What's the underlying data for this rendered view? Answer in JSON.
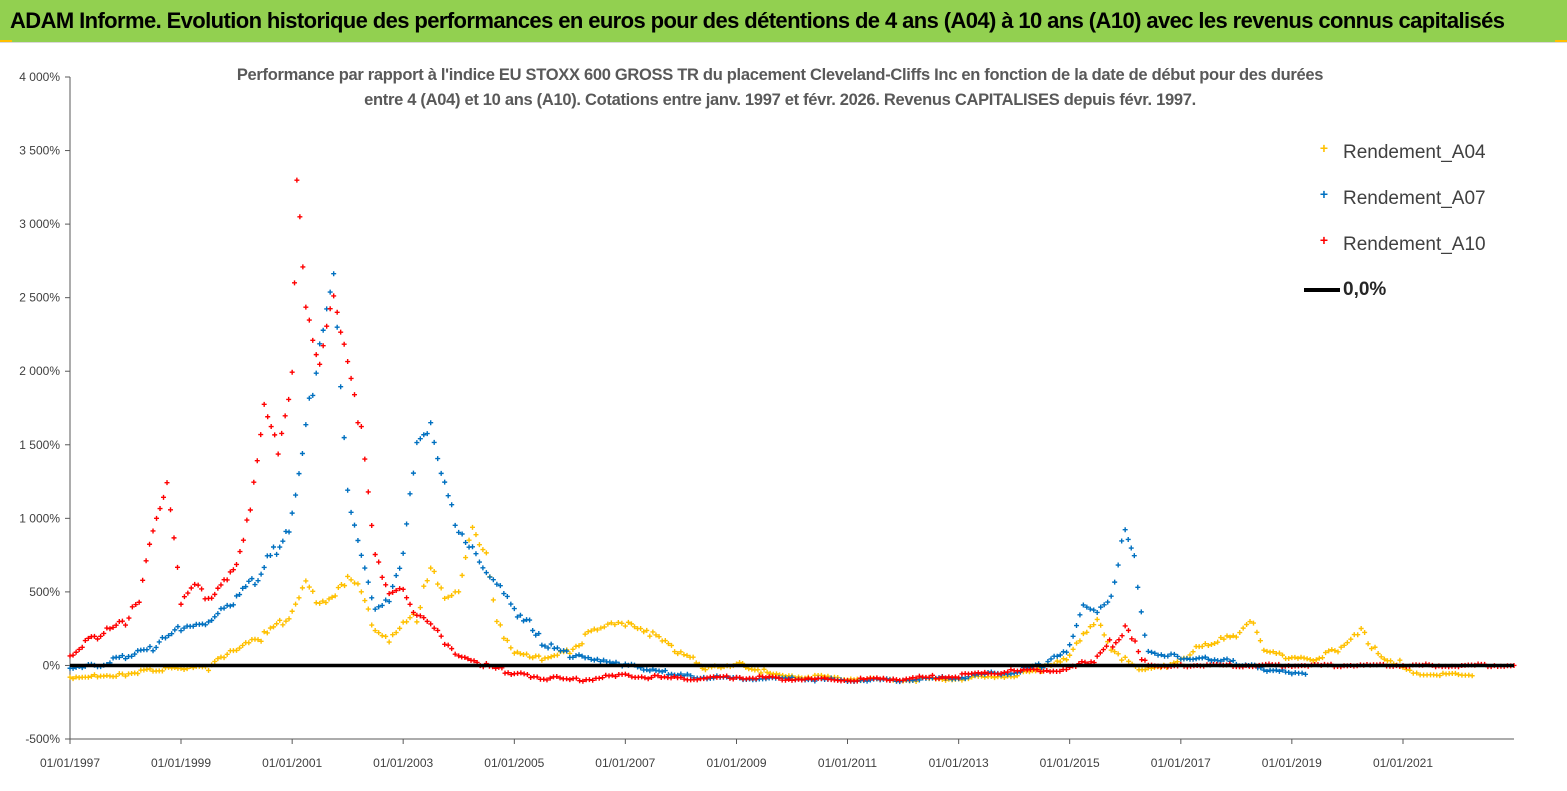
{
  "banner": {
    "title": "ADAM Informe. Evolution historique des performances en euros pour des détentions de 4 ans (A04) à 10 ans (A10) avec les revenus connus capitalisés",
    "background": "#92d050",
    "corner_color": "#ffc000"
  },
  "chart_data": {
    "type": "scatter",
    "title_line1": "Performance par rapport à l'indice EU STOXX 600 GROSS TR  du placement Cleveland-Cliffs Inc en fonction de la date de début pour des durées",
    "title_line2": "entre 4 (A04) et 10 ans (A10). Cotations entre janv. 1997 et févr. 2026. Revenus CAPITALISES depuis févr. 1997.",
    "xlabel": "",
    "ylabel": "",
    "x_range": [
      "1997-01-01",
      "2023-01-01"
    ],
    "x_ticks": [
      "01/01/1997",
      "01/01/1999",
      "01/01/2001",
      "01/01/2003",
      "01/01/2005",
      "01/01/2007",
      "01/01/2009",
      "01/01/2011",
      "01/01/2013",
      "01/01/2015",
      "01/01/2017",
      "01/01/2019",
      "01/01/2021"
    ],
    "y_range": [
      -500,
      4000
    ],
    "y_ticks": [
      "-500%",
      "0%",
      "500%",
      "1 000%",
      "1 500%",
      "2 000%",
      "2 500%",
      "3 000%",
      "3 500%",
      "4 000%"
    ],
    "y_tick_values": [
      -500,
      0,
      500,
      1000,
      1500,
      2000,
      2500,
      3000,
      3500,
      4000
    ],
    "marker": "+",
    "legend_position": "top-right",
    "grid": false,
    "series": [
      {
        "name": "Rendement_A04",
        "color": "#ffc000",
        "points": [
          [
            "1997-01-01",
            -80
          ],
          [
            "1997-07-01",
            -70
          ],
          [
            "1998-01-01",
            -60
          ],
          [
            "1998-07-01",
            -30
          ],
          [
            "1999-01-01",
            -20
          ],
          [
            "1999-07-01",
            -10
          ],
          [
            "2000-01-01",
            100
          ],
          [
            "2000-07-01",
            200
          ],
          [
            "2001-01-01",
            350
          ],
          [
            "2001-04-01",
            550
          ],
          [
            "2001-07-01",
            400
          ],
          [
            "2002-01-01",
            600
          ],
          [
            "2002-04-01",
            550
          ],
          [
            "2002-07-01",
            250
          ],
          [
            "2002-10-01",
            180
          ],
          [
            "2003-01-01",
            300
          ],
          [
            "2003-04-01",
            350
          ],
          [
            "2003-07-01",
            650
          ],
          [
            "2003-10-01",
            450
          ],
          [
            "2004-01-01",
            500
          ],
          [
            "2004-04-01",
            900
          ],
          [
            "2004-07-01",
            700
          ],
          [
            "2004-10-01",
            250
          ],
          [
            "2005-01-01",
            100
          ],
          [
            "2005-07-01",
            50
          ],
          [
            "2006-01-01",
            100
          ],
          [
            "2006-07-01",
            250
          ],
          [
            "2006-10-01",
            290
          ],
          [
            "2007-01-01",
            280
          ],
          [
            "2007-07-01",
            200
          ],
          [
            "2008-01-01",
            80
          ],
          [
            "2008-07-01",
            -20
          ],
          [
            "2009-01-01",
            10
          ],
          [
            "2009-07-01",
            -40
          ],
          [
            "2010-01-01",
            -70
          ],
          [
            "2011-01-01",
            -90
          ],
          [
            "2012-01-01",
            -100
          ],
          [
            "2013-01-01",
            -90
          ],
          [
            "2014-01-01",
            -70
          ],
          [
            "2014-07-01",
            -30
          ],
          [
            "2015-01-01",
            50
          ],
          [
            "2015-04-01",
            200
          ],
          [
            "2015-07-01",
            300
          ],
          [
            "2015-10-01",
            100
          ],
          [
            "2016-01-01",
            40
          ],
          [
            "2016-04-01",
            -20
          ],
          [
            "2016-10-01",
            0
          ],
          [
            "2017-01-01",
            50
          ],
          [
            "2017-07-01",
            150
          ],
          [
            "2018-01-01",
            200
          ],
          [
            "2018-04-01",
            300
          ],
          [
            "2018-07-01",
            100
          ],
          [
            "2019-01-01",
            50
          ],
          [
            "2019-07-01",
            40
          ],
          [
            "2020-01-01",
            150
          ],
          [
            "2020-04-01",
            250
          ],
          [
            "2020-07-01",
            100
          ],
          [
            "2021-01-01",
            0
          ],
          [
            "2021-04-01",
            -50
          ],
          [
            "2021-07-01",
            -60
          ],
          [
            "2022-01-01",
            -60
          ],
          [
            "2022-04-01",
            -70
          ]
        ]
      },
      {
        "name": "Rendement_A07",
        "color": "#0070c0",
        "points": [
          [
            "1997-01-01",
            -10
          ],
          [
            "1997-07-01",
            0
          ],
          [
            "1998-01-01",
            60
          ],
          [
            "1998-07-01",
            120
          ],
          [
            "1999-01-01",
            250
          ],
          [
            "1999-07-01",
            280
          ],
          [
            "2000-01-01",
            450
          ],
          [
            "2000-07-01",
            650
          ],
          [
            "2001-01-01",
            1000
          ],
          [
            "2001-04-01",
            1600
          ],
          [
            "2001-07-01",
            2200
          ],
          [
            "2001-10-01",
            2700
          ],
          [
            "2002-01-01",
            1200
          ],
          [
            "2002-04-01",
            800
          ],
          [
            "2002-07-01",
            400
          ],
          [
            "2002-10-01",
            450
          ],
          [
            "2003-01-01",
            700
          ],
          [
            "2003-04-01",
            1500
          ],
          [
            "2003-07-01",
            1600
          ],
          [
            "2003-10-01",
            1200
          ],
          [
            "2004-01-01",
            900
          ],
          [
            "2004-04-01",
            800
          ],
          [
            "2004-07-01",
            650
          ],
          [
            "2004-10-01",
            550
          ],
          [
            "2005-01-01",
            400
          ],
          [
            "2005-07-01",
            150
          ],
          [
            "2006-01-01",
            70
          ],
          [
            "2006-07-01",
            30
          ],
          [
            "2007-01-01",
            0
          ],
          [
            "2007-07-01",
            -30
          ],
          [
            "2008-01-01",
            -70
          ],
          [
            "2009-01-01",
            -90
          ],
          [
            "2010-01-01",
            -90
          ],
          [
            "2011-01-01",
            -100
          ],
          [
            "2012-01-01",
            -100
          ],
          [
            "2013-01-01",
            -80
          ],
          [
            "2014-01-01",
            -40
          ],
          [
            "2014-07-01",
            0
          ],
          [
            "2015-01-01",
            100
          ],
          [
            "2015-04-01",
            400
          ],
          [
            "2015-07-01",
            350
          ],
          [
            "2015-10-01",
            450
          ],
          [
            "2016-01-01",
            900
          ],
          [
            "2016-03-01",
            700
          ],
          [
            "2016-06-01",
            100
          ],
          [
            "2017-01-01",
            50
          ],
          [
            "2017-07-01",
            50
          ],
          [
            "2018-01-01",
            20
          ],
          [
            "2018-07-01",
            -30
          ],
          [
            "2019-01-01",
            -50
          ],
          [
            "2019-04-01",
            -60
          ]
        ]
      },
      {
        "name": "Rendement_A10",
        "color": "#ff0000",
        "points": [
          [
            "1997-01-01",
            80
          ],
          [
            "1997-07-01",
            200
          ],
          [
            "1998-01-01",
            300
          ],
          [
            "1998-04-01",
            450
          ],
          [
            "1998-07-01",
            900
          ],
          [
            "1998-10-01",
            1200
          ],
          [
            "1999-01-01",
            400
          ],
          [
            "1999-04-01",
            550
          ],
          [
            "1999-07-01",
            450
          ],
          [
            "2000-01-01",
            700
          ],
          [
            "2000-04-01",
            1100
          ],
          [
            "2000-07-01",
            1800
          ],
          [
            "2000-10-01",
            1500
          ],
          [
            "2001-01-01",
            2000
          ],
          [
            "2001-02-01",
            3300
          ],
          [
            "2001-04-01",
            2400
          ],
          [
            "2001-07-01",
            2000
          ],
          [
            "2001-10-01",
            2500
          ],
          [
            "2002-01-01",
            2000
          ],
          [
            "2002-04-01",
            1600
          ],
          [
            "2002-07-01",
            800
          ],
          [
            "2002-10-01",
            500
          ],
          [
            "2003-01-01",
            550
          ],
          [
            "2003-04-01",
            350
          ],
          [
            "2003-07-01",
            300
          ],
          [
            "2003-10-01",
            150
          ],
          [
            "2004-01-01",
            50
          ],
          [
            "2004-07-01",
            0
          ],
          [
            "2005-01-01",
            -60
          ],
          [
            "2006-01-01",
            -100
          ],
          [
            "2007-01-01",
            -70
          ],
          [
            "2008-01-01",
            -90
          ],
          [
            "2009-01-01",
            -80
          ],
          [
            "2010-01-01",
            -90
          ],
          [
            "2011-01-01",
            -100
          ],
          [
            "2012-01-01",
            -90
          ],
          [
            "2013-01-01",
            -70
          ],
          [
            "2014-01-01",
            -40
          ],
          [
            "2015-01-01",
            -30
          ],
          [
            "2015-07-01",
            50
          ],
          [
            "2016-01-01",
            250
          ],
          [
            "2016-06-01",
            0
          ],
          [
            "2017-01-01",
            0
          ],
          [
            "2018-01-01",
            0
          ],
          [
            "2019-01-01",
            0
          ],
          [
            "2020-01-01",
            0
          ],
          [
            "2021-01-01",
            0
          ],
          [
            "2022-01-01",
            0
          ],
          [
            "2023-01-01",
            0
          ]
        ]
      }
    ],
    "reference_line": {
      "name": "0,0%",
      "value": 0,
      "color": "#000000"
    }
  }
}
